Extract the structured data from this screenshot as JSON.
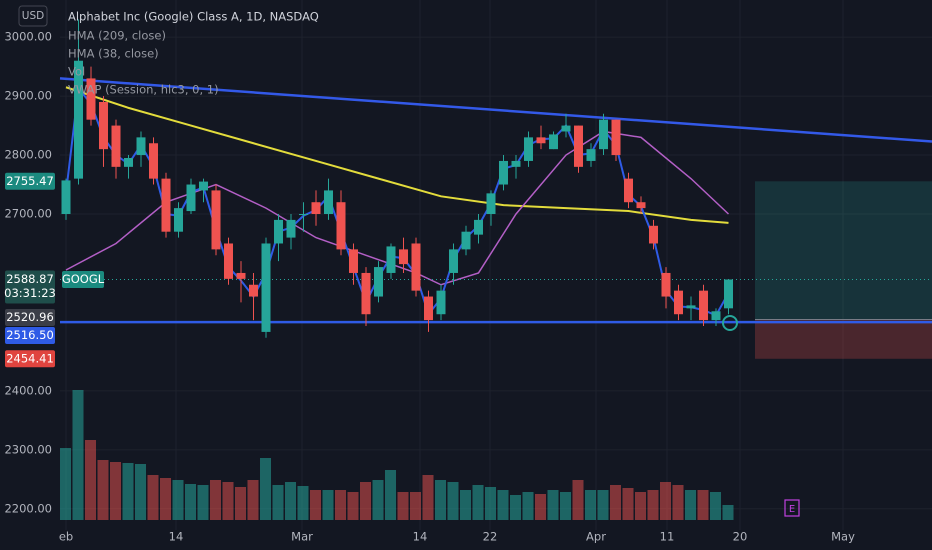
{
  "chart_data": {
    "type": "candlestick",
    "title": "Alphabet Inc (Google) Class A, 1D, NASDAQ",
    "currency": "USD",
    "ticker": "GOOGL",
    "indicators": [
      "HMA (209, close)",
      "HMA (38, close)",
      "Vol",
      "VWAP (Session, hlc3, 0, 1)"
    ],
    "x_labels": [
      "eb",
      "14",
      "Mar",
      "14",
      "22",
      "Apr",
      "11",
      "20",
      "May"
    ],
    "open": [
      2700,
      2760,
      2930,
      2890,
      2850,
      2780,
      2800,
      2820,
      2760,
      2670,
      2705,
      2740,
      2740,
      2650,
      2600,
      2580,
      2500,
      2650,
      2660,
      2700,
      2720,
      2700,
      2720,
      2640,
      2600,
      2560,
      2600,
      2640,
      2650,
      2560,
      2530,
      2600,
      2640,
      2665,
      2700,
      2750,
      2780,
      2790,
      2830,
      2810,
      2840,
      2850,
      2790,
      2810,
      2860,
      2760,
      2720,
      2680,
      2600,
      2570,
      2540,
      2570,
      2520,
      2540
    ],
    "high": [
      2760,
      3030,
      2950,
      2900,
      2860,
      2800,
      2840,
      2830,
      2770,
      2720,
      2760,
      2760,
      2750,
      2660,
      2620,
      2600,
      2660,
      2700,
      2700,
      2720,
      2740,
      2760,
      2740,
      2650,
      2610,
      2620,
      2650,
      2660,
      2660,
      2570,
      2580,
      2650,
      2680,
      2700,
      2740,
      2800,
      2800,
      2840,
      2850,
      2840,
      2870,
      2850,
      2820,
      2870,
      2860,
      2770,
      2730,
      2690,
      2610,
      2580,
      2560,
      2580,
      2540,
      2580
    ],
    "low": [
      2690,
      2750,
      2850,
      2780,
      2760,
      2760,
      2780,
      2750,
      2660,
      2660,
      2700,
      2720,
      2630,
      2580,
      2550,
      2520,
      2490,
      2620,
      2640,
      2670,
      2680,
      2690,
      2630,
      2580,
      2510,
      2550,
      2590,
      2600,
      2560,
      2500,
      2520,
      2580,
      2630,
      2650,
      2680,
      2740,
      2760,
      2780,
      2810,
      2810,
      2830,
      2770,
      2780,
      2800,
      2790,
      2710,
      2700,
      2640,
      2540,
      2520,
      2520,
      2510,
      2510,
      2530
    ],
    "close": [
      2757,
      2960,
      2860,
      2810,
      2780,
      2795,
      2830,
      2760,
      2670,
      2710,
      2750,
      2755,
      2640,
      2590,
      2590,
      2560,
      2650,
      2690,
      2690,
      2700,
      2700,
      2740,
      2640,
      2600,
      2530,
      2610,
      2645,
      2615,
      2570,
      2520,
      2570,
      2640,
      2670,
      2690,
      2735,
      2790,
      2790,
      2830,
      2820,
      2835,
      2850,
      2780,
      2810,
      2860,
      2800,
      2720,
      2710,
      2650,
      2560,
      2530,
      2545,
      2520,
      2535,
      2588.87
    ],
    "volume": [
      72,
      130,
      80,
      60,
      58,
      57,
      56,
      45,
      42,
      40,
      36,
      35,
      40,
      38,
      33,
      40,
      62,
      35,
      38,
      34,
      30,
      30,
      30,
      28,
      38,
      40,
      50,
      28,
      28,
      45,
      40,
      38,
      30,
      35,
      33,
      30,
      25,
      28,
      26,
      30,
      28,
      40,
      30,
      30,
      35,
      32,
      28,
      30,
      38,
      35,
      30,
      30,
      28,
      15
    ],
    "up_color": "#26a69a",
    "down_color": "#ef5350",
    "vwap": {
      "color": "#2f5be6",
      "values": [
        2736,
        2913,
        2887,
        2830,
        2800,
        2785,
        2817,
        2780,
        2700,
        2697,
        2737,
        2745,
        2673,
        2610,
        2587,
        2560,
        2600,
        2670,
        2677,
        2697,
        2707,
        2730,
        2670,
        2610,
        2550,
        2593,
        2628,
        2625,
        2597,
        2530,
        2557,
        2623,
        2660,
        2680,
        2718,
        2777,
        2783,
        2817,
        2827,
        2828,
        2850,
        2800,
        2803,
        2843,
        2817,
        2733,
        2713,
        2660,
        2570,
        2543,
        2542,
        2537,
        2528,
        2566
      ]
    },
    "hma209": {
      "color": "#e3dc3c",
      "x": [
        0,
        5,
        10,
        15,
        20,
        25,
        30,
        35,
        40,
        45,
        50,
        53
      ],
      "values": [
        2915,
        2880,
        2850,
        2820,
        2790,
        2760,
        2730,
        2715,
        2710,
        2705,
        2690,
        2685
      ]
    },
    "hma38": {
      "color": "#b35fc6",
      "x": [
        0,
        4,
        8,
        12,
        16,
        20,
        24,
        28,
        30,
        33,
        36,
        40,
        43,
        46,
        50,
        53
      ],
      "values": [
        2605,
        2650,
        2720,
        2750,
        2710,
        2660,
        2630,
        2600,
        2580,
        2600,
        2700,
        2800,
        2840,
        2830,
        2760,
        2700
      ]
    },
    "trendline": {
      "color": "#3359e8",
      "values": [
        2930,
        2823
      ]
    },
    "support": {
      "color": "#2f5be6",
      "value": 2516.5,
      "label": "2516.50"
    },
    "position": {
      "target": 2755.47,
      "entry": 2520.96,
      "stop": 2454.41
    },
    "last_price": 2588.87,
    "countdown": "03:31:23",
    "earnings_label": "E",
    "ylim": [
      2164,
      3063
    ],
    "yticks": [
      {
        "value": 2200,
        "label": "2200.00"
      },
      {
        "value": 2300,
        "label": "2300.00"
      },
      {
        "value": 2400,
        "label": "2400.00"
      },
      {
        "value": 2700,
        "label": "2700.00"
      },
      {
        "value": 2800,
        "label": "2800.00"
      },
      {
        "value": 2900,
        "label": "2900.00"
      },
      {
        "value": 3000,
        "label": "3000.00"
      }
    ],
    "grid": true
  }
}
